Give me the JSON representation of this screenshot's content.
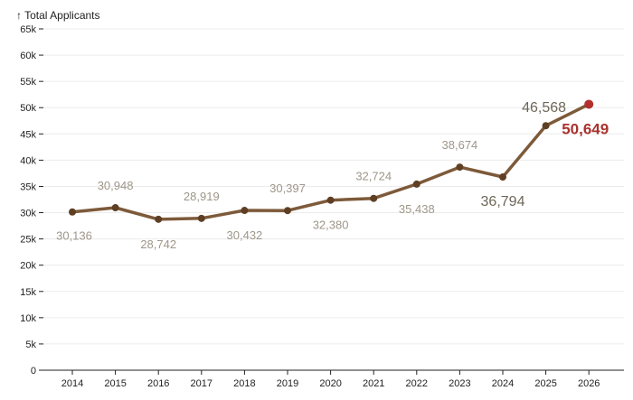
{
  "chart_data": {
    "type": "line",
    "title": "↑ Total Applicants",
    "x": [
      "2014",
      "2015",
      "2016",
      "2017",
      "2018",
      "2019",
      "2020",
      "2021",
      "2022",
      "2023",
      "2024",
      "2025",
      "2026"
    ],
    "series": [
      {
        "values": [
          30136,
          30948,
          28742,
          28919,
          30432,
          30397,
          32380,
          32724,
          35438,
          38674,
          36794,
          46568,
          50649
        ]
      }
    ],
    "data_labels": [
      "30,136",
      "30,948",
      "28,742",
      "28,919",
      "30,432",
      "30,397",
      "32,380",
      "32,724",
      "35,438",
      "38,674",
      "36,794",
      "46,568",
      "50,649"
    ],
    "y_ticks": [
      {
        "value": 0,
        "label": "0"
      },
      {
        "value": 5000,
        "label": "5k"
      },
      {
        "value": 10000,
        "label": "10k"
      },
      {
        "value": 15000,
        "label": "15k"
      },
      {
        "value": 20000,
        "label": "20k"
      },
      {
        "value": 25000,
        "label": "25k"
      },
      {
        "value": 30000,
        "label": "30k"
      },
      {
        "value": 35000,
        "label": "35k"
      },
      {
        "value": 40000,
        "label": "40k"
      },
      {
        "value": 45000,
        "label": "45k"
      },
      {
        "value": 50000,
        "label": "50k"
      },
      {
        "value": 55000,
        "label": "55k"
      },
      {
        "value": 60000,
        "label": "60k"
      },
      {
        "value": 65000,
        "label": "65k"
      }
    ],
    "ylim": [
      0,
      65000
    ],
    "grid": true,
    "colors": {
      "line": "#7d5a3a",
      "point": "#5e3f24",
      "highlight_point": "#b3302d",
      "label": "#9e9689",
      "highlight_label": "#a8332e"
    }
  }
}
